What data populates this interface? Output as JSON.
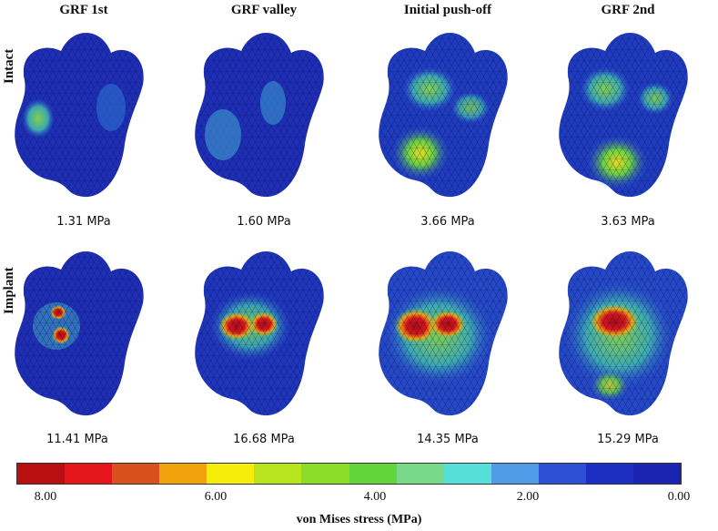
{
  "columns": [
    "GRF 1st",
    "GRF valley",
    "Initial push-off",
    "GRF 2nd"
  ],
  "rows": [
    {
      "label": "Intact",
      "values": [
        "1.31 MPa",
        "1.60 MPa",
        "3.66 MPa",
        "3.63 MPa"
      ]
    },
    {
      "label": "Implant",
      "values": [
        "11.41 MPa",
        "16.68 MPa",
        "14.35 MPa",
        "15.29 MPa"
      ]
    }
  ],
  "colorbar": {
    "title": "von Mises stress (MPa)",
    "ticks": [
      "8.00",
      "6.00",
      "4.00",
      "2.00",
      "0.00"
    ],
    "colors": [
      "#b70f12",
      "#e5161a",
      "#d8511c",
      "#f2a20d",
      "#f6ee0a",
      "#b8e420",
      "#8cdc2a",
      "#60d63a",
      "#78d98a",
      "#56ded8",
      "#4f9be8",
      "#2d4fd4",
      "#1d2fc2",
      "#1b24b0"
    ]
  }
}
